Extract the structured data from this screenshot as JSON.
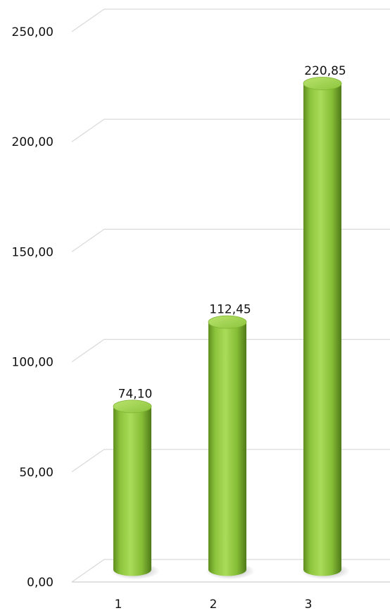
{
  "chart_data": {
    "type": "bar",
    "style": "3d-cylinder",
    "categories": [
      "1",
      "2",
      "3"
    ],
    "values": [
      74.1,
      112.45,
      220.85
    ],
    "value_labels": [
      "74,10",
      "112,45",
      "220,85"
    ],
    "ylim": [
      0,
      250
    ],
    "y_ticks": [
      0,
      50,
      100,
      150,
      200,
      250
    ],
    "y_tick_labels": [
      "0,00",
      "50,00",
      "100,00",
      "150,00",
      "200,00",
      "250,00"
    ],
    "grid": true,
    "legend": "none",
    "bar_color": "#8cc43c",
    "bar_shadow_color": "#4f7a1a",
    "bar_top_color": "#a6d658"
  }
}
